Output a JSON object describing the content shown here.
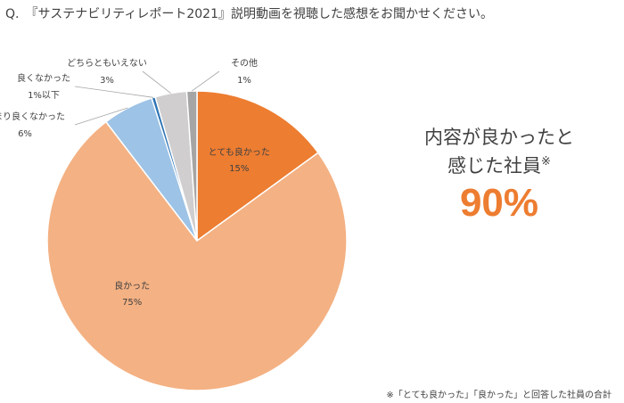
{
  "question": "Q.　『サステナビリティレポート2021』説明動画を視聴した感想をお聞かせください。",
  "chart_data": {
    "type": "pie",
    "title": "Q.　『サステナビリティレポート2021』説明動画を視聴した感想をお聞かせください。",
    "start_angle_deg": 0,
    "direction": "clockwise",
    "slices": [
      {
        "label": "とても良かった",
        "value_label": "15%",
        "value": 15.0,
        "color": "#ED7D31"
      },
      {
        "label": "良かった",
        "value_label": "75%",
        "value": 74.6,
        "color": "#F4B183"
      },
      {
        "label": "あまり良くなかった",
        "value_label": "6%",
        "value": 5.5,
        "color": "#9DC3E6"
      },
      {
        "label": "良くなかった",
        "value_label": "1%以下",
        "value": 0.4,
        "color": "#2E75B6"
      },
      {
        "label": "どちらともいえない",
        "value_label": "3%",
        "value": 3.4,
        "color": "#D0CECE"
      },
      {
        "label": "その他",
        "value_label": "1%",
        "value": 1.1,
        "color": "#A5A5A5"
      }
    ]
  },
  "callout": {
    "line1": "内容が良かったと",
    "line2": "感じた社員",
    "mark": "※",
    "percent": "90%"
  },
  "footnote": "※「とても良かった」「良かった」と回答した社員の合計",
  "colors": {
    "accent": "#ED7D31",
    "text": "#404040",
    "leader": "#A6A6A6"
  }
}
